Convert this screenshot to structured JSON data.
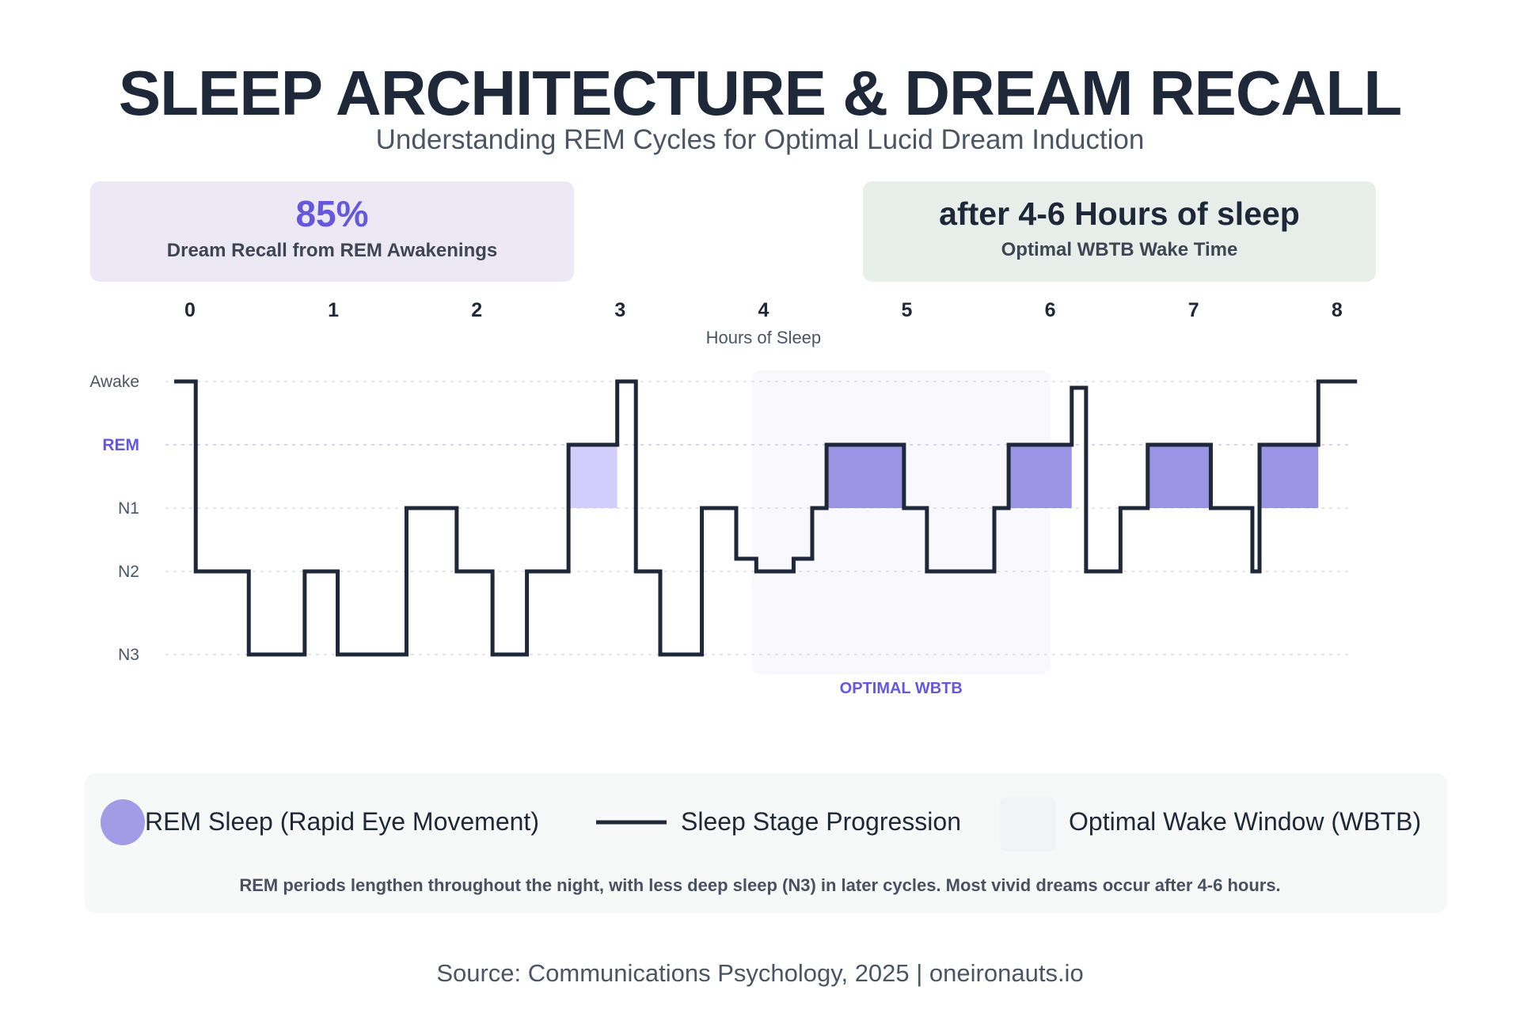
{
  "header": {
    "title": "SLEEP ARCHITECTURE & DREAM RECALL",
    "subtitle": "Understanding REM Cycles for Optimal Lucid Dream Induction"
  },
  "cards": {
    "left": {
      "value": "85%",
      "label": "Dream Recall from REM Awakenings"
    },
    "right": {
      "value": "after 4-6 Hours of sleep",
      "label": "Optimal WBTB Wake Time"
    }
  },
  "chart_data": {
    "type": "line",
    "subtype": "step hypnogram",
    "xlabel": "Hours of Sleep",
    "x_ticks": [
      "0",
      "1",
      "2",
      "3",
      "4",
      "5",
      "6",
      "7",
      "8"
    ],
    "xlim": [
      -0.11,
      8.14
    ],
    "x_axis_position": "top",
    "y_categories": [
      "Awake",
      "REM",
      "N1",
      "N2",
      "N3"
    ],
    "y_highlight": "REM",
    "grid": "horizontal dotted",
    "stage_series": {
      "name": "Sleep Stage Progression",
      "note": "stage index: 0=Awake, 1=REM, 2=N1, 3=N2, 4=N3; fractional values are intermediate levels",
      "points": [
        [
          -0.11,
          0
        ],
        [
          0.04,
          3
        ],
        [
          0.41,
          4
        ],
        [
          0.8,
          3
        ],
        [
          1.03,
          4
        ],
        [
          1.51,
          2
        ],
        [
          1.86,
          3
        ],
        [
          2.11,
          4
        ],
        [
          2.35,
          3
        ],
        [
          2.64,
          1
        ],
        [
          2.98,
          0
        ],
        [
          3.11,
          3
        ],
        [
          3.28,
          4
        ],
        [
          3.57,
          2
        ],
        [
          3.81,
          2.8
        ],
        [
          3.95,
          3
        ],
        [
          4.21,
          2.8
        ],
        [
          4.34,
          2
        ],
        [
          4.44,
          1
        ],
        [
          4.98,
          2
        ],
        [
          5.14,
          3
        ],
        [
          5.61,
          2
        ],
        [
          5.71,
          1
        ],
        [
          6.15,
          0.1
        ],
        [
          6.25,
          3
        ],
        [
          6.49,
          2
        ],
        [
          6.68,
          1
        ],
        [
          7.12,
          2
        ],
        [
          7.41,
          3
        ],
        [
          7.46,
          1
        ],
        [
          7.87,
          0
        ],
        [
          8.14,
          0
        ]
      ]
    },
    "rem_periods": [
      {
        "start": 2.64,
        "end": 2.98,
        "intensity": "light"
      },
      {
        "start": 4.44,
        "end": 4.98,
        "intensity": "full"
      },
      {
        "start": 5.71,
        "end": 6.15,
        "intensity": "full"
      },
      {
        "start": 6.68,
        "end": 7.12,
        "intensity": "full"
      },
      {
        "start": 7.46,
        "end": 7.87,
        "intensity": "full"
      }
    ],
    "wbtb_window": {
      "start": 3.92,
      "end": 6.0,
      "label": "OPTIMAL WBTB"
    },
    "colors": {
      "line": "#1e2838",
      "rem_fill": "#9b93e3",
      "rem_fill_light": "#d3cdfb",
      "wbtb_fill": "#f9f8fc",
      "accent": "#6558dc",
      "grid": "#e3e4ea"
    }
  },
  "legend": {
    "items": [
      {
        "label": "REM Sleep (Rapid Eye Movement)",
        "icon": "circle",
        "color": "#a29be6"
      },
      {
        "label": "Sleep Stage Progression",
        "icon": "line",
        "color": "#1e2838"
      },
      {
        "label": "Optimal Wake Window (WBTB)",
        "icon": "square",
        "color": "#f2f3f7"
      }
    ],
    "note": "REM periods lengthen throughout the night, with less deep sleep (N3) in later cycles. Most vivid dreams occur after 4-6 hours."
  },
  "footer": {
    "source": "Source: Communications Psychology, 2025 | oneironauts.io"
  }
}
